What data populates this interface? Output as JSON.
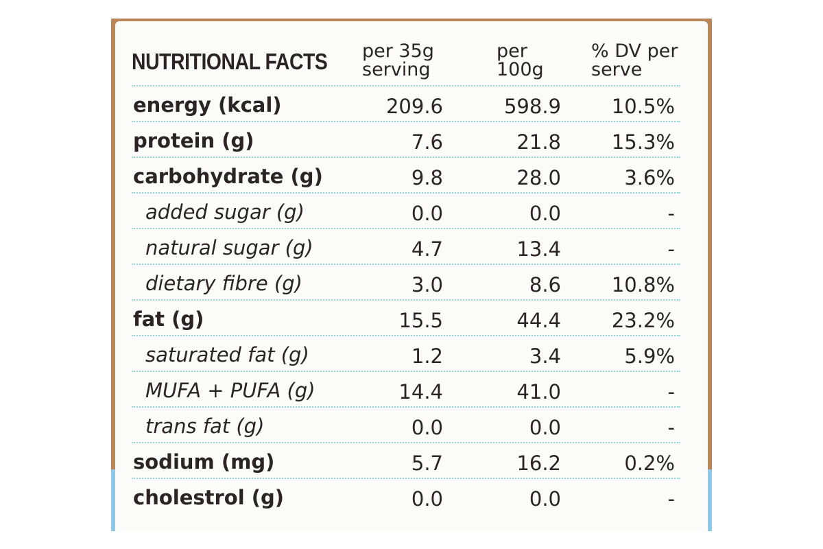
{
  "header": {
    "title": "NUTRITIONAL FACTS",
    "col1_line1": "per 35g",
    "col1_line2": "serving",
    "col2_line1": "per",
    "col2_line2": "100g",
    "col3_line1": "% DV per",
    "col3_line2": "serve"
  },
  "rows": [
    {
      "name": "energy (kcal)",
      "per_serving": "209.6",
      "per_100g": "598.9",
      "dv": "10.5%"
    },
    {
      "name": "protein (g)",
      "per_serving": "7.6",
      "per_100g": "21.8",
      "dv": "15.3%"
    },
    {
      "name": "carbohydrate (g)",
      "per_serving": "9.8",
      "per_100g": "28.0",
      "dv": "3.6%"
    },
    {
      "name": "added sugar (g)",
      "per_serving": "0.0",
      "per_100g": "0.0",
      "dv": "-"
    },
    {
      "name": "natural sugar (g)",
      "per_serving": "4.7",
      "per_100g": "13.4",
      "dv": "-"
    },
    {
      "name": "dietary fibre (g)",
      "per_serving": "3.0",
      "per_100g": "8.6",
      "dv": "10.8%"
    },
    {
      "name": "fat (g)",
      "per_serving": "15.5",
      "per_100g": "44.4",
      "dv": "23.2%"
    },
    {
      "name": "saturated fat (g)",
      "per_serving": "1.2",
      "per_100g": "3.4",
      "dv": "5.9%"
    },
    {
      "name": "MUFA + PUFA (g)",
      "per_serving": "14.4",
      "per_100g": "41.0",
      "dv": "-"
    },
    {
      "name": "trans fat (g)",
      "per_serving": "0.0",
      "per_100g": "0.0",
      "dv": "-"
    },
    {
      "name": "sodium (mg)",
      "per_serving": "5.7",
      "per_100g": "16.2",
      "dv": "0.2%"
    },
    {
      "name": "cholestrol (g)",
      "per_serving": "0.0",
      "per_100g": "0.0",
      "dv": "-"
    }
  ]
}
